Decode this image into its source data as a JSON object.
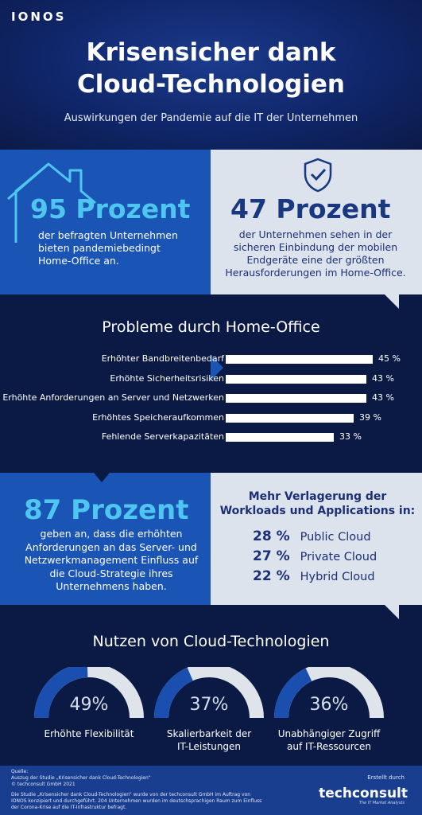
{
  "header": {
    "logo": "IONOS",
    "title_line1": "Krisensicher dank",
    "title_line2": "Cloud-Technologien",
    "subtitle": "Auswirkungen der Pandemie auf die IT der Unternehmen"
  },
  "stat95": {
    "value": "95 Prozent",
    "desc_line1": "der befragten Unternehmen",
    "desc_line2": "bieten pandemiebedingt",
    "desc_line3": "Home-Office an."
  },
  "stat47": {
    "value": "47 Prozent",
    "desc_line1": "der Unternehmen sehen in der",
    "desc_line2": "sicheren Einbindung der mobilen",
    "desc_line3": "Endgeräte eine der größten",
    "desc_line4": "Herausforderungen im Home-Office."
  },
  "chart_data": {
    "type": "bar",
    "orientation": "horizontal",
    "title": "Probleme durch Home-Office",
    "categories": [
      "Erhöhter Bandbreitenbedarf",
      "Erhöhte Sicherheitsrisiken",
      "Erhöhte Anforderungen an Server und Netzwerken",
      "Erhöhtes Speicheraufkommen",
      "Fehlende Serverkapazitäten"
    ],
    "values": [
      45,
      43,
      43,
      39,
      33
    ],
    "value_labels": [
      "45 %",
      "43 %",
      "43 %",
      "39 %",
      "33 %"
    ],
    "xlim": [
      0,
      100
    ],
    "grid": false,
    "bar_color": "#ffffff"
  },
  "stat87": {
    "value": "87 Prozent",
    "desc_line1": "geben an, dass die erhöhten",
    "desc_line2": "Anforderungen an das Server- und",
    "desc_line3": "Netzwerkmanagement Einfluss auf",
    "desc_line4": "die Cloud-Strategie ihres",
    "desc_line5": "Unternehmens haben."
  },
  "workloads": {
    "title_line1": "Mehr Verlagerung der",
    "title_line2": "Workloads und Applications in:",
    "items": [
      {
        "pct": "28 %",
        "label": "Public Cloud"
      },
      {
        "pct": "27 %",
        "label": "Private Cloud"
      },
      {
        "pct": "22 %",
        "label": "Hybrid Cloud"
      }
    ]
  },
  "benefits": {
    "title": "Nutzen von Cloud-Technologien",
    "gauges": [
      {
        "value": 49,
        "text": "49%",
        "label_line1": "Erhöhte Flexibilität",
        "label_line2": ""
      },
      {
        "value": 37,
        "text": "37%",
        "label_line1": "Skalierbarkeit der",
        "label_line2": "IT-Leistungen"
      },
      {
        "value": 36,
        "text": "36%",
        "label_line1": "Unabhängiger Zugriff",
        "label_line2": "auf IT-Ressourcen"
      }
    ]
  },
  "footer": {
    "source_title": "Quelle:",
    "source_line1": "Auszug der Studie „Krisensicher dank Cloud-Technologien“",
    "source_line2": "© techconsult GmbH 2021",
    "note_line1": "Die Studie „Krisensicher dank Cloud-Technologien“ wurde von der techconsult GmbH im Auftrag von",
    "note_line2": "IONOS konzipiert und durchgeführt. 204 Unternehmen wurden im deutschsprachigen Raum zum Einfluss",
    "note_line3": "der Corona-Krise auf die IT-Infrastruktur befragt.",
    "created_by": "Erstellt durch",
    "partner_logo": "techconsult",
    "partner_tagline": "The IT Market Analysts"
  },
  "colors": {
    "navy": "#0b1a45",
    "blue_panel": "#1a54b5",
    "gray_panel": "#dde3ed",
    "accent_cyan": "#4ec6f0",
    "dark_text": "#1b2f74"
  }
}
